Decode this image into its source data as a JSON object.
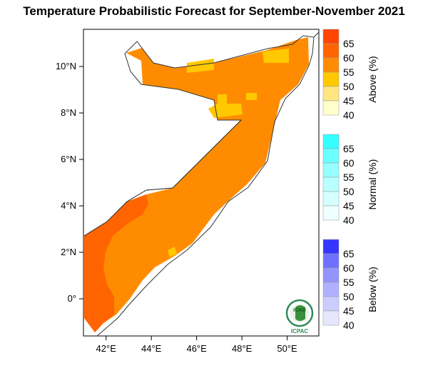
{
  "title": "Temperature Probabilistic Forecast for September-November 2021",
  "map": {
    "x_axis": {
      "ticks": [
        42,
        44,
        46,
        48,
        50
      ],
      "labels": [
        "42°E",
        "44°E",
        "46°E",
        "48°E",
        "50°E"
      ],
      "range": [
        41,
        51.4
      ]
    },
    "y_axis": {
      "ticks": [
        0,
        2,
        4,
        6,
        8,
        10
      ],
      "labels": [
        "0°",
        "2°N",
        "4°N",
        "6°N",
        "8°N",
        "10°N"
      ],
      "range": [
        -1.6,
        11.6
      ]
    },
    "dominant_category": "Above",
    "dominant_color": "#FF8C00"
  },
  "legend": [
    {
      "title": "Above (%)",
      "levels": [
        "40",
        "45",
        "50",
        "55",
        "60",
        "65"
      ],
      "colors": [
        "#FFFFCC",
        "#FFE680",
        "#FFC800",
        "#FF8C00",
        "#FF6400",
        "#FF4500"
      ]
    },
    {
      "title": "Normal (%)",
      "levels": [
        "40",
        "45",
        "50",
        "55",
        "60",
        "65"
      ],
      "colors": [
        "#F0FFFF",
        "#D6FFFF",
        "#B8FFFF",
        "#96FFFF",
        "#6CFFFF",
        "#33FFFF"
      ]
    },
    {
      "title": "Below (%)",
      "levels": [
        "40",
        "45",
        "50",
        "55",
        "60",
        "65"
      ],
      "colors": [
        "#E6E6FF",
        "#CCCCFF",
        "#B0B0FF",
        "#9494FF",
        "#7070FF",
        "#3535FF"
      ]
    }
  ],
  "logo": {
    "text_top": "IGAD",
    "text_bottom": "ICPAC"
  }
}
